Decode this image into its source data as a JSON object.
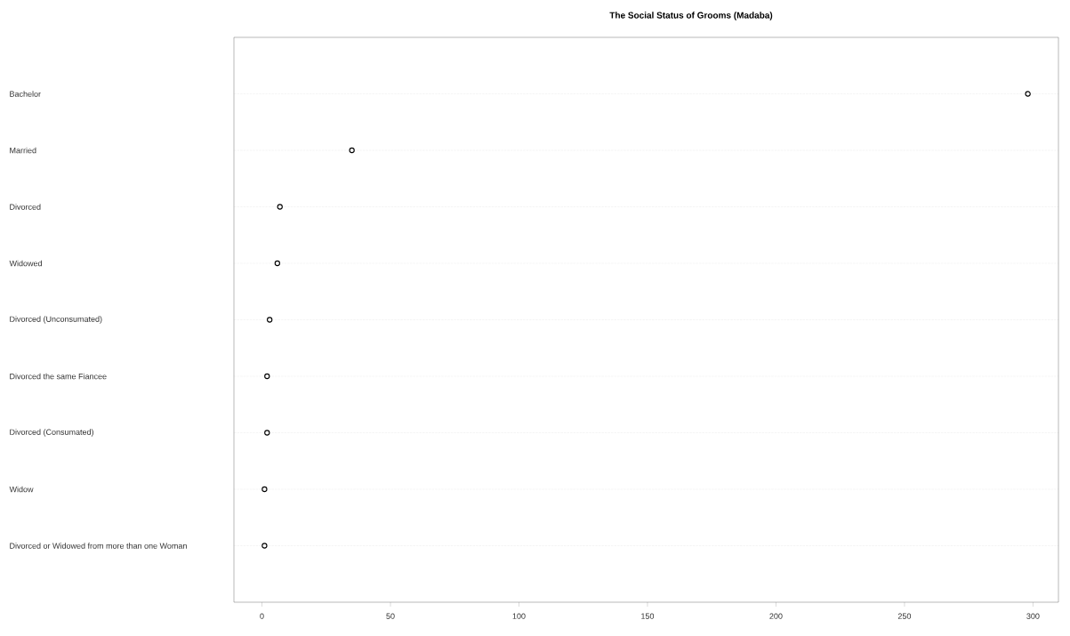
{
  "chart_data": {
    "type": "scatter",
    "orientation": "horizontal",
    "title": "The Social Status of Grooms (Madaba)",
    "categories": [
      "Bachelor",
      "Married",
      "Divorced",
      "Widowed",
      "Divorced (Unconsumated)",
      "Divorced the same Fiancee",
      "Divorced (Consumated)",
      "Widow",
      "Divorced or Widowed from more than one Woman"
    ],
    "values": [
      298,
      35,
      7,
      6,
      3,
      2,
      2,
      1,
      1
    ],
    "color": "#000000",
    "marker": "circle",
    "grid": "y",
    "xlim": [
      -10.9,
      309.9
    ],
    "xticks": [
      0,
      50,
      100,
      150,
      200,
      250,
      300
    ]
  }
}
